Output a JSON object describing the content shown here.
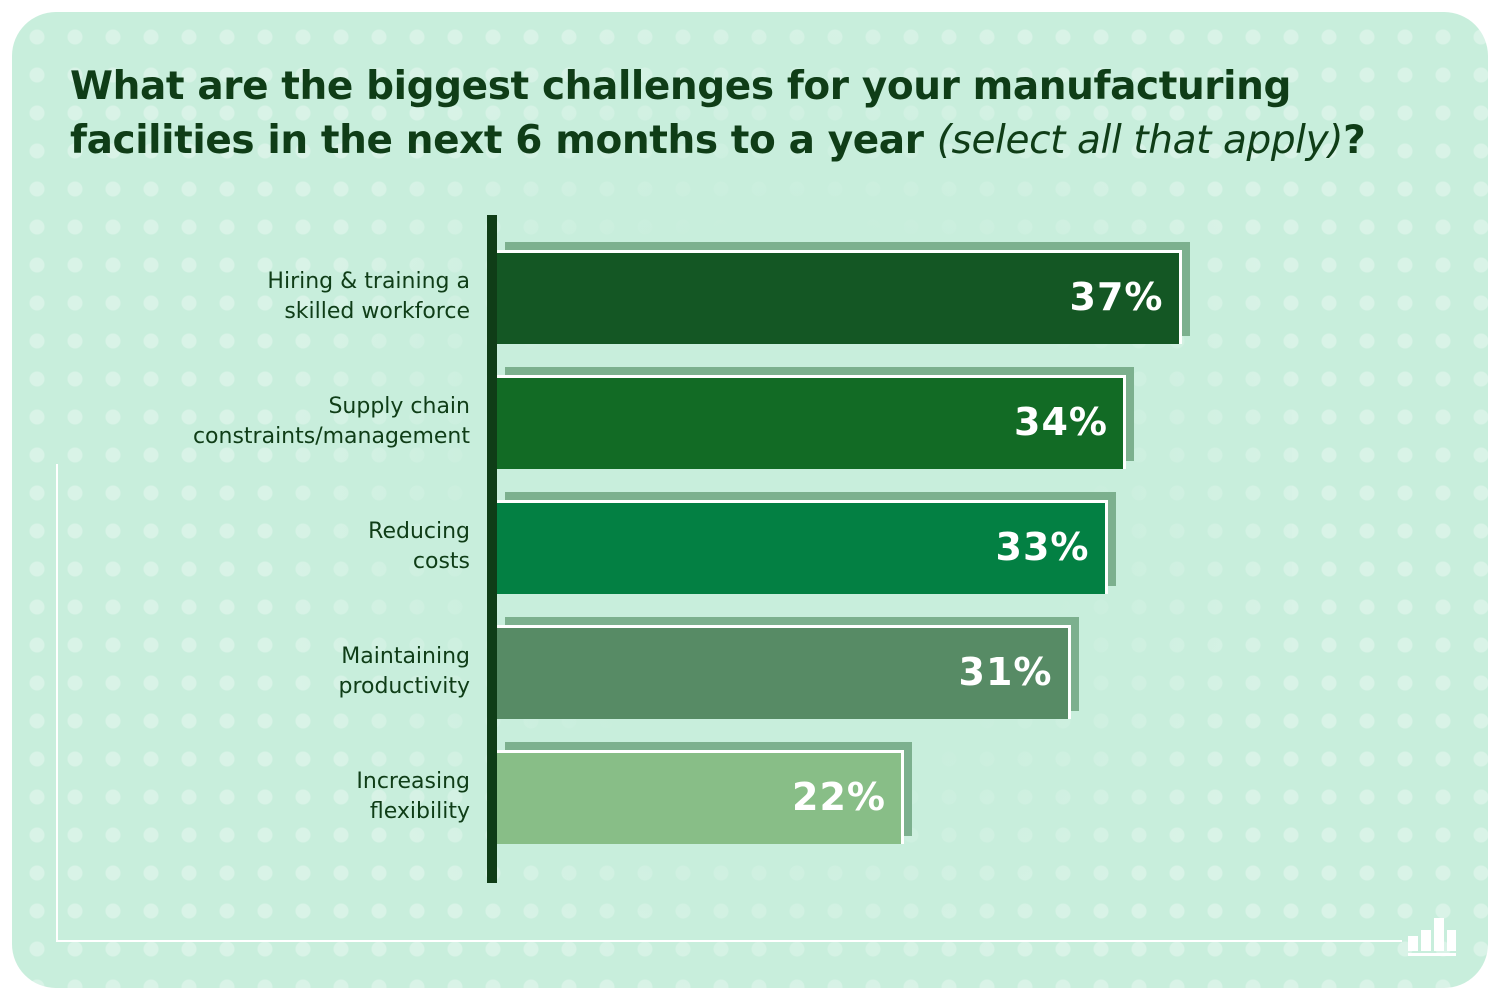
{
  "title": {
    "main": "What are the biggest challenges for your manufacturing facilities in the next 6 months to a year ",
    "note": "(select all that apply)",
    "end": "?"
  },
  "colors": {
    "background": "#c8eedc",
    "text": "#0f3d17",
    "shadow": "#7cb08e"
  },
  "icons": {
    "logo": "bar-chart-logo-icon"
  },
  "chart_data": {
    "type": "bar",
    "orientation": "horizontal",
    "title": "What are the biggest challenges for your manufacturing facilities in the next 6 months to a year (select all that apply)?",
    "categories": [
      [
        "Hiring & training a",
        "skilled workforce"
      ],
      [
        "Supply chain",
        "constraints/management"
      ],
      [
        "Reducing",
        "costs"
      ],
      [
        "Maintaining",
        "productivity"
      ],
      [
        "Increasing",
        "flexibility"
      ]
    ],
    "values": [
      37,
      34,
      33,
      31,
      22
    ],
    "value_labels": [
      "37%",
      "34%",
      "33%",
      "31%",
      "22%"
    ],
    "bar_colors": [
      "#145724",
      "#126b25",
      "#038043",
      "#578b65",
      "#88be87"
    ],
    "unit": "%",
    "grid": false,
    "legend": "none"
  }
}
